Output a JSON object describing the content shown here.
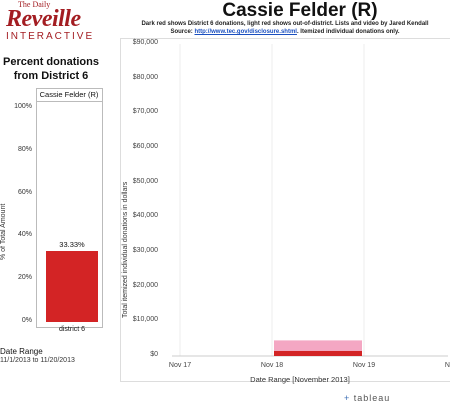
{
  "logo": {
    "top": "The Daily",
    "main": "Reveille",
    "sub": "INTERACTIVE"
  },
  "header": {
    "title": "Cassie Felder (R)",
    "subtitle_line1": "Dark red shows District 6 donations, light red shows out-of-district. Lists and video by Jared Kendall",
    "subtitle_source_prefix": "Source: ",
    "subtitle_source_link": "http://www.tec.gov/disclosure.shtml",
    "subtitle_source_suffix": ". Itemized individual donations only."
  },
  "left_panel": {
    "title": "Percent donations from District 6",
    "column_header": "Cassie Felder (R)",
    "y_axis_label": "% of Total Amount",
    "date_range_heading": "Date Range",
    "date_range_value": "11/1/2013 to 11/20/2013"
  },
  "right_panel": {
    "y_axis_label": "Total itemized individual donations in dollars",
    "x_axis_label": "Date Range [November 2013]"
  },
  "branding": {
    "tableau": "tableau"
  },
  "colors": {
    "district": "#d32425",
    "out_of_district": "#f4a7c3"
  },
  "chart_data": [
    {
      "type": "bar",
      "categories": [
        "district 6"
      ],
      "values": [
        33.33
      ],
      "value_labels": [
        "33.33%"
      ],
      "ylim": [
        0,
        100
      ],
      "yticks": [
        "0%",
        "20%",
        "40%",
        "60%",
        "80%",
        "100%"
      ],
      "ylabel": "% of Total Amount"
    },
    {
      "type": "bar",
      "stacked": true,
      "x_ticks": [
        "Nov 17",
        "Nov 18",
        "Nov 19",
        "Nov 20"
      ],
      "bar_span": [
        "Nov 18",
        "Nov 19"
      ],
      "series": [
        {
          "values": [
            1500
          ]
        },
        {
          "values": [
            3000
          ]
        }
      ],
      "ylim": [
        0,
        90000
      ],
      "yticks": [
        "$0",
        "$10,000",
        "$20,000",
        "$30,000",
        "$40,000",
        "$50,000",
        "$60,000",
        "$70,000",
        "$80,000",
        "$90,000"
      ],
      "ylabel": "Total itemized individual donations in dollars",
      "xlabel": "Date Range [November 2013]"
    }
  ]
}
